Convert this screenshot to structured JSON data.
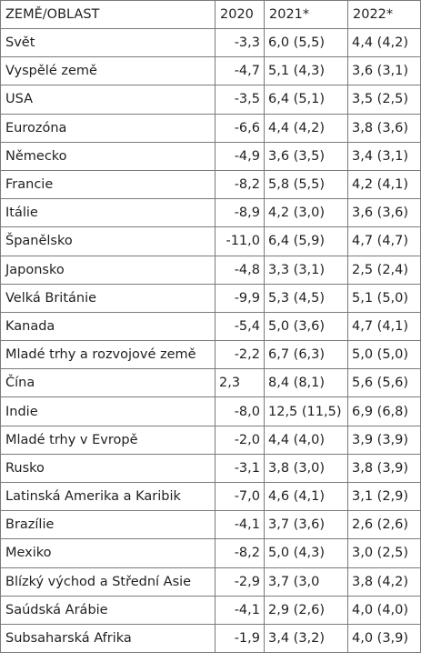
{
  "header": {
    "region": "ZEMĚ/OBLAST",
    "y2020": "2020",
    "y2021": "2021*",
    "y2022": "2022*"
  },
  "rows": [
    {
      "name": "Svět",
      "y2020": "-3,3",
      "y2021": "6,0 (5,5)",
      "y2022": "4,4 (4,2)"
    },
    {
      "name": "Vyspělé země",
      "y2020": "-4,7",
      "y2021": "5,1 (4,3)",
      "y2022": "3,6 (3,1)"
    },
    {
      "name": "USA",
      "y2020": "-3,5",
      "y2021": "6,4 (5,1)",
      "y2022": "3,5 (2,5)"
    },
    {
      "name": "Eurozóna",
      "y2020": "-6,6",
      "y2021": "4,4 (4,2)",
      "y2022": "3,8 (3,6)"
    },
    {
      "name": "Německo",
      "y2020": "-4,9",
      "y2021": "3,6 (3,5)",
      "y2022": "3,4 (3,1)"
    },
    {
      "name": "Francie",
      "y2020": "-8,2",
      "y2021": "5,8 (5,5)",
      "y2022": "4,2 (4,1)"
    },
    {
      "name": "Itálie",
      "y2020": "-8,9",
      "y2021": "4,2 (3,0)",
      "y2022": "3,6 (3,6)"
    },
    {
      "name": "Španělsko",
      "y2020": "-11,0",
      "y2021": "6,4 (5,9)",
      "y2022": "4,7 (4,7)"
    },
    {
      "name": "Japonsko",
      "y2020": "-4,8",
      "y2021": "3,3 (3,1)",
      "y2022": "2,5 (2,4)"
    },
    {
      "name": "Velká Británie",
      "y2020": "-9,9",
      "y2021": "5,3 (4,5)",
      "y2022": "5,1 (5,0)"
    },
    {
      "name": "Kanada",
      "y2020": "-5,4",
      "y2021": "5,0 (3,6)",
      "y2022": "4,7 (4,1)"
    },
    {
      "name": "Mladé trhy a rozvojové země",
      "y2020": "-2,2",
      "y2021": "6,7 (6,3)",
      "y2022": "5,0 (5,0)"
    },
    {
      "name": "Čína",
      "y2020": "2,3",
      "y2021": "8,4 (8,1)",
      "y2022": "5,6 (5,6)"
    },
    {
      "name": "Indie",
      "y2020": "-8,0",
      "y2021": "12,5 (11,5)",
      "y2022": "6,9 (6,8)"
    },
    {
      "name": "Mladé trhy v Evropě",
      "y2020": "-2,0",
      "y2021": "4,4 (4,0)",
      "y2022": "3,9 (3,9)"
    },
    {
      "name": "Rusko",
      "y2020": "-3,1",
      "y2021": "3,8 (3,0)",
      "y2022": "3,8 (3,9)"
    },
    {
      "name": "Latinská Amerika a Karibik",
      "y2020": "-7,0",
      "y2021": "4,6 (4,1)",
      "y2022": "3,1 (2,9)"
    },
    {
      "name": "Brazílie",
      "y2020": "-4,1",
      "y2021": "3,7 (3,6)",
      "y2022": "2,6 (2,6)"
    },
    {
      "name": "Mexiko",
      "y2020": "-8,2",
      "y2021": "5,0 (4,3)",
      "y2022": "3,0 (2,5)"
    },
    {
      "name": "Blízký východ a Střední Asie",
      "y2020": "-2,9",
      "y2021": "3,7 (3,0",
      "y2022": "3,8 (4,2)"
    },
    {
      "name": "Saúdská Arábie",
      "y2020": "-4,1",
      "y2021": "2,9 (2,6)",
      "y2022": "4,0 (4,0)"
    },
    {
      "name": "Subsaharská Afrika",
      "y2020": "-1,9",
      "y2021": "3,4 (3,2)",
      "y2022": "4,0 (3,9)"
    }
  ]
}
